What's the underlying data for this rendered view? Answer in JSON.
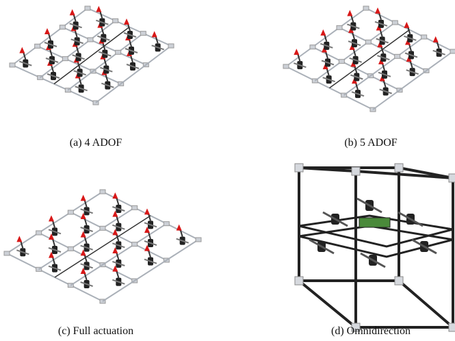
{
  "subfigures": [
    {
      "caption": "(a) 4 ADOF"
    },
    {
      "caption": "(b) 5 ADOF"
    },
    {
      "caption": "(c) Full actuation"
    },
    {
      "caption": "(d) Omnidirection"
    }
  ]
}
